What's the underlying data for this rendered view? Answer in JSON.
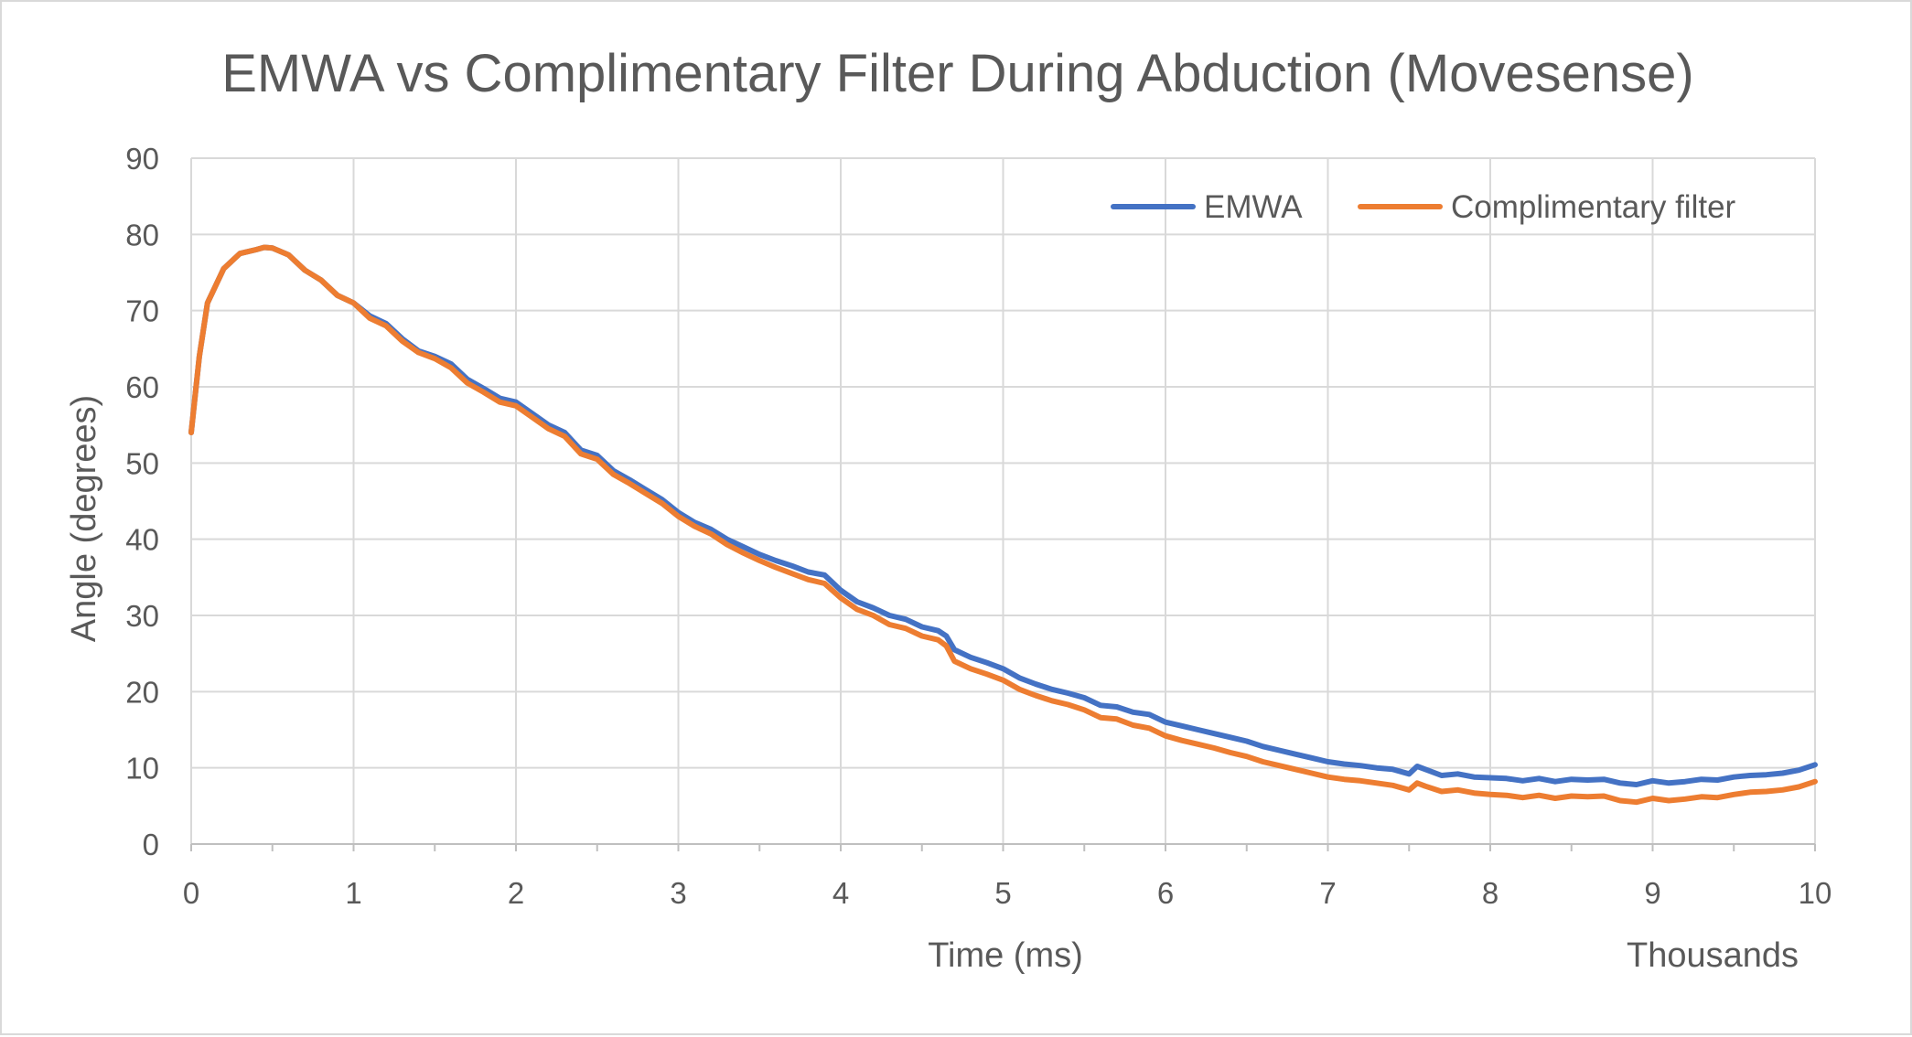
{
  "chart_data": {
    "type": "line",
    "title": "EMWA vs Complimentary Filter During Abduction (Movesense)",
    "xlabel": "Time (ms)",
    "x_unit_label": "Thousands",
    "ylabel": "Angle (degrees)",
    "xlim": [
      0,
      10
    ],
    "ylim": [
      0,
      90
    ],
    "x_ticks": [
      "0",
      "1",
      "2",
      "3",
      "4",
      "5",
      "6",
      "7",
      "8",
      "9",
      "10"
    ],
    "y_ticks": [
      "0",
      "10",
      "20",
      "30",
      "40",
      "50",
      "60",
      "70",
      "80",
      "90"
    ],
    "grid": true,
    "legend_position": "top-right",
    "series": [
      {
        "name": "EMWA",
        "color": "#4472c4",
        "points": [
          [
            0,
            54
          ],
          [
            0.05,
            64
          ],
          [
            0.1,
            71
          ],
          [
            0.2,
            75.5
          ],
          [
            0.3,
            77.5
          ],
          [
            0.4,
            78
          ],
          [
            0.45,
            78.3
          ],
          [
            0.5,
            78.2
          ],
          [
            0.6,
            77.3
          ],
          [
            0.7,
            75.3
          ],
          [
            0.8,
            74
          ],
          [
            0.9,
            72
          ],
          [
            1.0,
            71
          ],
          [
            1.1,
            69.3
          ],
          [
            1.2,
            68.3
          ],
          [
            1.3,
            66.3
          ],
          [
            1.4,
            64.7
          ],
          [
            1.5,
            64
          ],
          [
            1.6,
            63
          ],
          [
            1.7,
            61
          ],
          [
            1.8,
            59.8
          ],
          [
            1.9,
            58.5
          ],
          [
            2.0,
            58
          ],
          [
            2.1,
            56.5
          ],
          [
            2.2,
            55
          ],
          [
            2.3,
            54
          ],
          [
            2.4,
            51.7
          ],
          [
            2.5,
            51
          ],
          [
            2.6,
            49
          ],
          [
            2.7,
            47.8
          ],
          [
            2.8,
            46.5
          ],
          [
            2.9,
            45.2
          ],
          [
            3.0,
            43.5
          ],
          [
            3.1,
            42.2
          ],
          [
            3.2,
            41.3
          ],
          [
            3.3,
            40
          ],
          [
            3.4,
            39
          ],
          [
            3.5,
            38
          ],
          [
            3.6,
            37.2
          ],
          [
            3.7,
            36.5
          ],
          [
            3.8,
            35.7
          ],
          [
            3.9,
            35.3
          ],
          [
            4.0,
            33.3
          ],
          [
            4.1,
            31.8
          ],
          [
            4.2,
            31
          ],
          [
            4.3,
            30
          ],
          [
            4.4,
            29.5
          ],
          [
            4.5,
            28.5
          ],
          [
            4.6,
            28
          ],
          [
            4.65,
            27.3
          ],
          [
            4.7,
            25.5
          ],
          [
            4.8,
            24.5
          ],
          [
            4.9,
            23.8
          ],
          [
            5.0,
            23
          ],
          [
            5.1,
            21.8
          ],
          [
            5.2,
            21
          ],
          [
            5.3,
            20.3
          ],
          [
            5.4,
            19.8
          ],
          [
            5.5,
            19.2
          ],
          [
            5.6,
            18.2
          ],
          [
            5.7,
            18
          ],
          [
            5.8,
            17.3
          ],
          [
            5.9,
            17
          ],
          [
            6.0,
            16
          ],
          [
            6.1,
            15.5
          ],
          [
            6.2,
            15
          ],
          [
            6.3,
            14.5
          ],
          [
            6.4,
            14
          ],
          [
            6.5,
            13.5
          ],
          [
            6.6,
            12.8
          ],
          [
            6.7,
            12.3
          ],
          [
            6.8,
            11.8
          ],
          [
            6.9,
            11.3
          ],
          [
            7.0,
            10.8
          ],
          [
            7.1,
            10.5
          ],
          [
            7.2,
            10.3
          ],
          [
            7.3,
            10
          ],
          [
            7.4,
            9.8
          ],
          [
            7.5,
            9.2
          ],
          [
            7.55,
            10.2
          ],
          [
            7.6,
            9.8
          ],
          [
            7.7,
            9
          ],
          [
            7.8,
            9.2
          ],
          [
            7.9,
            8.8
          ],
          [
            8.0,
            8.7
          ],
          [
            8.1,
            8.6
          ],
          [
            8.2,
            8.3
          ],
          [
            8.3,
            8.6
          ],
          [
            8.4,
            8.2
          ],
          [
            8.5,
            8.5
          ],
          [
            8.6,
            8.4
          ],
          [
            8.7,
            8.5
          ],
          [
            8.8,
            8
          ],
          [
            8.9,
            7.8
          ],
          [
            9.0,
            8.3
          ],
          [
            9.1,
            8
          ],
          [
            9.2,
            8.2
          ],
          [
            9.3,
            8.5
          ],
          [
            9.4,
            8.4
          ],
          [
            9.5,
            8.8
          ],
          [
            9.6,
            9
          ],
          [
            9.7,
            9.1
          ],
          [
            9.8,
            9.3
          ],
          [
            9.9,
            9.7
          ],
          [
            10.0,
            10.4
          ]
        ]
      },
      {
        "name": "Complimentary filter",
        "color": "#ed7d31",
        "points": [
          [
            0,
            54
          ],
          [
            0.05,
            64
          ],
          [
            0.1,
            71
          ],
          [
            0.2,
            75.5
          ],
          [
            0.3,
            77.5
          ],
          [
            0.4,
            78
          ],
          [
            0.45,
            78.3
          ],
          [
            0.5,
            78.2
          ],
          [
            0.6,
            77.3
          ],
          [
            0.7,
            75.3
          ],
          [
            0.8,
            74
          ],
          [
            0.9,
            72
          ],
          [
            1.0,
            71
          ],
          [
            1.1,
            69
          ],
          [
            1.2,
            68
          ],
          [
            1.3,
            66
          ],
          [
            1.4,
            64.5
          ],
          [
            1.5,
            63.7
          ],
          [
            1.6,
            62.5
          ],
          [
            1.7,
            60.5
          ],
          [
            1.8,
            59.3
          ],
          [
            1.9,
            58
          ],
          [
            2.0,
            57.5
          ],
          [
            2.1,
            56
          ],
          [
            2.2,
            54.5
          ],
          [
            2.3,
            53.5
          ],
          [
            2.4,
            51.2
          ],
          [
            2.5,
            50.5
          ],
          [
            2.6,
            48.5
          ],
          [
            2.7,
            47.3
          ],
          [
            2.8,
            46
          ],
          [
            2.9,
            44.7
          ],
          [
            3.0,
            43
          ],
          [
            3.1,
            41.7
          ],
          [
            3.2,
            40.7
          ],
          [
            3.3,
            39.3
          ],
          [
            3.4,
            38.2
          ],
          [
            3.5,
            37.2
          ],
          [
            3.6,
            36.3
          ],
          [
            3.7,
            35.5
          ],
          [
            3.8,
            34.7
          ],
          [
            3.9,
            34.2
          ],
          [
            4.0,
            32.3
          ],
          [
            4.1,
            30.8
          ],
          [
            4.2,
            30
          ],
          [
            4.3,
            28.8
          ],
          [
            4.4,
            28.3
          ],
          [
            4.5,
            27.3
          ],
          [
            4.6,
            26.8
          ],
          [
            4.65,
            26
          ],
          [
            4.7,
            24
          ],
          [
            4.8,
            23
          ],
          [
            4.9,
            22.3
          ],
          [
            5.0,
            21.5
          ],
          [
            5.1,
            20.3
          ],
          [
            5.2,
            19.5
          ],
          [
            5.3,
            18.8
          ],
          [
            5.4,
            18.3
          ],
          [
            5.5,
            17.6
          ],
          [
            5.6,
            16.6
          ],
          [
            5.7,
            16.4
          ],
          [
            5.8,
            15.6
          ],
          [
            5.9,
            15.2
          ],
          [
            6.0,
            14.2
          ],
          [
            6.1,
            13.6
          ],
          [
            6.2,
            13.1
          ],
          [
            6.3,
            12.6
          ],
          [
            6.4,
            12
          ],
          [
            6.5,
            11.5
          ],
          [
            6.6,
            10.8
          ],
          [
            6.7,
            10.3
          ],
          [
            6.8,
            9.8
          ],
          [
            6.9,
            9.3
          ],
          [
            7.0,
            8.8
          ],
          [
            7.1,
            8.5
          ],
          [
            7.2,
            8.3
          ],
          [
            7.3,
            8
          ],
          [
            7.4,
            7.7
          ],
          [
            7.5,
            7.1
          ],
          [
            7.55,
            8
          ],
          [
            7.6,
            7.6
          ],
          [
            7.7,
            6.9
          ],
          [
            7.8,
            7.1
          ],
          [
            7.9,
            6.7
          ],
          [
            8.0,
            6.5
          ],
          [
            8.1,
            6.4
          ],
          [
            8.2,
            6.1
          ],
          [
            8.3,
            6.4
          ],
          [
            8.4,
            6
          ],
          [
            8.5,
            6.3
          ],
          [
            8.6,
            6.2
          ],
          [
            8.7,
            6.3
          ],
          [
            8.8,
            5.7
          ],
          [
            8.9,
            5.5
          ],
          [
            9.0,
            6
          ],
          [
            9.1,
            5.7
          ],
          [
            9.2,
            5.9
          ],
          [
            9.3,
            6.2
          ],
          [
            9.4,
            6.1
          ],
          [
            9.5,
            6.5
          ],
          [
            9.6,
            6.8
          ],
          [
            9.7,
            6.9
          ],
          [
            9.8,
            7.1
          ],
          [
            9.9,
            7.5
          ],
          [
            10.0,
            8.2
          ]
        ]
      }
    ]
  }
}
